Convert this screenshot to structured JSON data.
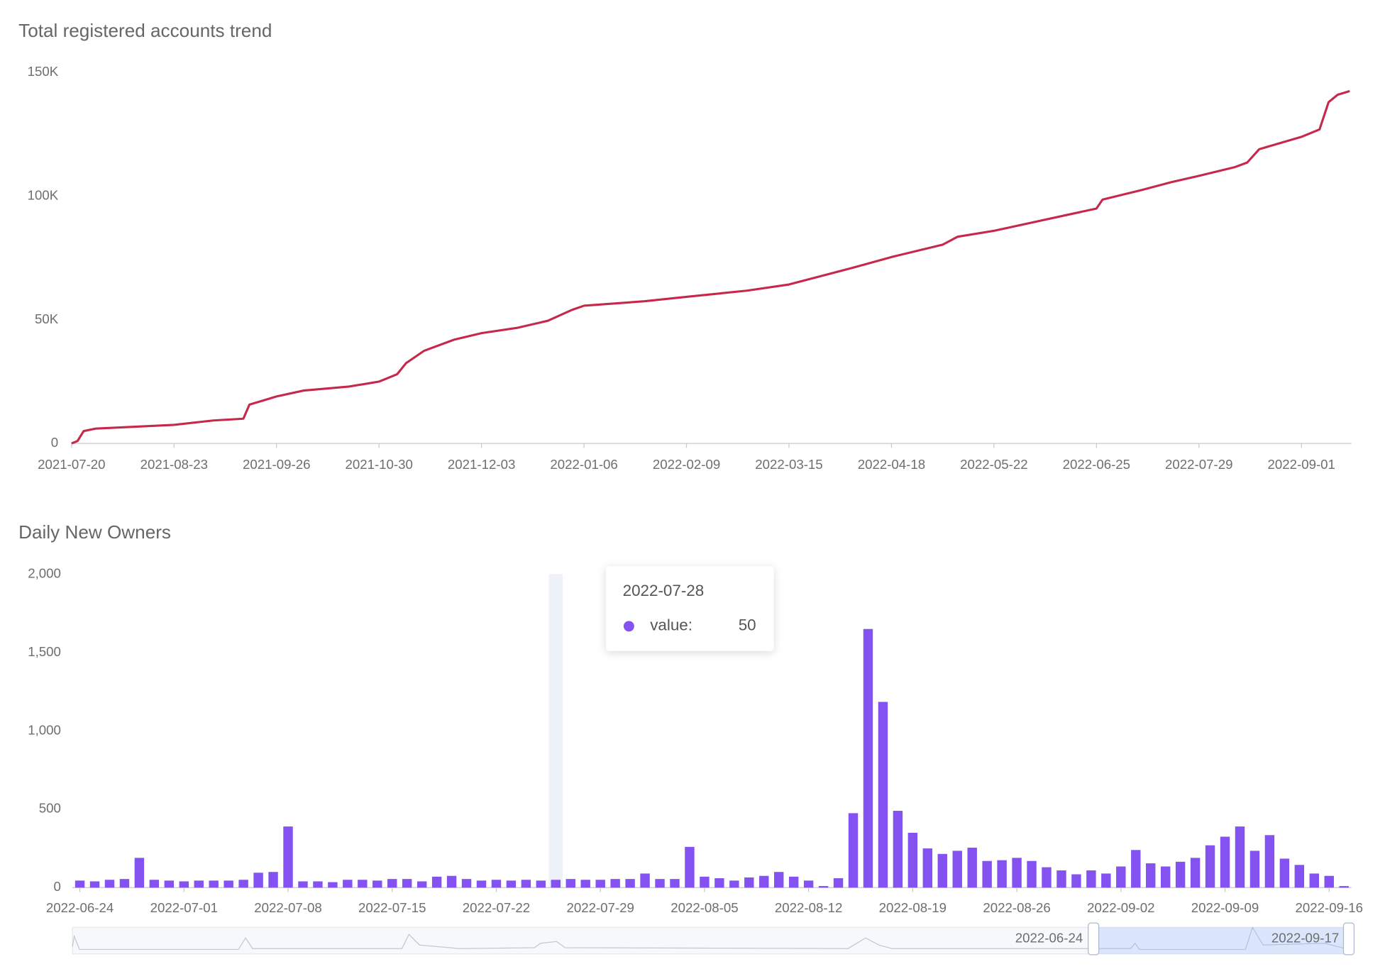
{
  "chart_data": [
    {
      "type": "line",
      "title": "Total registered accounts trend",
      "color": "#c7284a",
      "x": [
        "2021-07-20",
        "2021-07-22",
        "2021-07-24",
        "2021-07-28",
        "2021-08-23",
        "2021-09-05",
        "2021-09-15",
        "2021-09-17",
        "2021-09-26",
        "2021-10-05",
        "2021-10-20",
        "2021-10-30",
        "2021-11-05",
        "2021-11-08",
        "2021-11-14",
        "2021-11-24",
        "2021-12-03",
        "2021-12-15",
        "2021-12-25",
        "2022-01-02",
        "2022-01-06",
        "2022-01-26",
        "2022-02-09",
        "2022-03-01",
        "2022-03-15",
        "2022-03-25",
        "2022-04-05",
        "2022-04-18",
        "2022-05-05",
        "2022-05-10",
        "2022-05-22",
        "2022-06-25",
        "2022-06-27",
        "2022-07-10",
        "2022-07-20",
        "2022-07-29",
        "2022-08-10",
        "2022-08-14",
        "2022-08-18",
        "2022-09-01",
        "2022-09-07",
        "2022-09-10",
        "2022-09-13",
        "2022-09-17"
      ],
      "values": [
        0,
        1000,
        5000,
        6000,
        7500,
        9300,
        10000,
        15700,
        19000,
        21400,
        23000,
        25000,
        28000,
        32500,
        37500,
        42000,
        44600,
        46800,
        49600,
        54000,
        55700,
        57500,
        59300,
        61800,
        64300,
        67500,
        71000,
        75400,
        80400,
        83600,
        86000,
        95000,
        98600,
        102500,
        105700,
        108200,
        111800,
        113600,
        119000,
        124000,
        127000,
        138000,
        141000,
        142500
      ],
      "xlim": [
        "2021-07-20",
        "2022-09-17"
      ],
      "xticks": [
        "2021-07-20",
        "2021-08-23",
        "2021-09-26",
        "2021-10-30",
        "2021-12-03",
        "2022-01-06",
        "2022-02-09",
        "2022-03-15",
        "2022-04-18",
        "2022-05-22",
        "2022-06-25",
        "2022-07-29",
        "2022-09-01"
      ],
      "ylim": [
        0,
        150000
      ],
      "yticks": [
        0,
        {
          "value": 50000,
          "label": "50K"
        },
        {
          "value": 100000,
          "label": "100K"
        },
        {
          "value": 150000,
          "label": "150K"
        }
      ]
    },
    {
      "type": "bar",
      "title": "Daily New Owners",
      "color": "#8452f0",
      "categories": [
        "2022-06-24",
        null,
        null,
        null,
        null,
        null,
        null,
        "2022-07-01",
        null,
        null,
        null,
        null,
        null,
        null,
        "2022-07-08",
        null,
        null,
        null,
        null,
        null,
        null,
        "2022-07-15",
        null,
        null,
        null,
        null,
        null,
        null,
        "2022-07-22",
        null,
        null,
        null,
        null,
        null,
        null,
        "2022-07-29",
        null,
        null,
        null,
        null,
        null,
        null,
        "2022-08-05",
        null,
        null,
        null,
        null,
        null,
        null,
        "2022-08-12",
        null,
        null,
        null,
        null,
        null,
        null,
        "2022-08-19",
        null,
        null,
        null,
        null,
        null,
        null,
        "2022-08-26",
        null,
        null,
        null,
        null,
        null,
        null,
        "2022-09-02",
        null,
        null,
        null,
        null,
        null,
        null,
        "2022-09-09",
        null,
        null,
        null,
        null,
        null,
        null,
        "2022-09-16",
        null
      ],
      "values": [
        45,
        40,
        50,
        55,
        190,
        50,
        45,
        40,
        45,
        45,
        45,
        50,
        95,
        100,
        390,
        40,
        40,
        35,
        50,
        50,
        45,
        55,
        55,
        40,
        70,
        75,
        55,
        45,
        50,
        45,
        50,
        45,
        50,
        55,
        50,
        50,
        55,
        55,
        90,
        55,
        55,
        260,
        70,
        60,
        45,
        65,
        75,
        100,
        70,
        45,
        10,
        60,
        475,
        1650,
        1185,
        490,
        350,
        250,
        215,
        235,
        255,
        170,
        175,
        190,
        170,
        130,
        110,
        85,
        110,
        90,
        135,
        240,
        155,
        135,
        165,
        190,
        270,
        325,
        390,
        235,
        335,
        185,
        145,
        90,
        75,
        10
      ],
      "ylim": [
        0,
        2000
      ],
      "yticks": [
        0,
        500,
        {
          "value": 1000,
          "label": "1,000"
        },
        {
          "value": 1500,
          "label": "1,500"
        },
        {
          "value": 2000,
          "label": "2,000"
        }
      ],
      "tooltip": {
        "title": "2022-07-28",
        "label": "value:",
        "value": 50
      },
      "datazoom": {
        "start": "2022-06-24",
        "end": "2022-09-17"
      }
    }
  ]
}
